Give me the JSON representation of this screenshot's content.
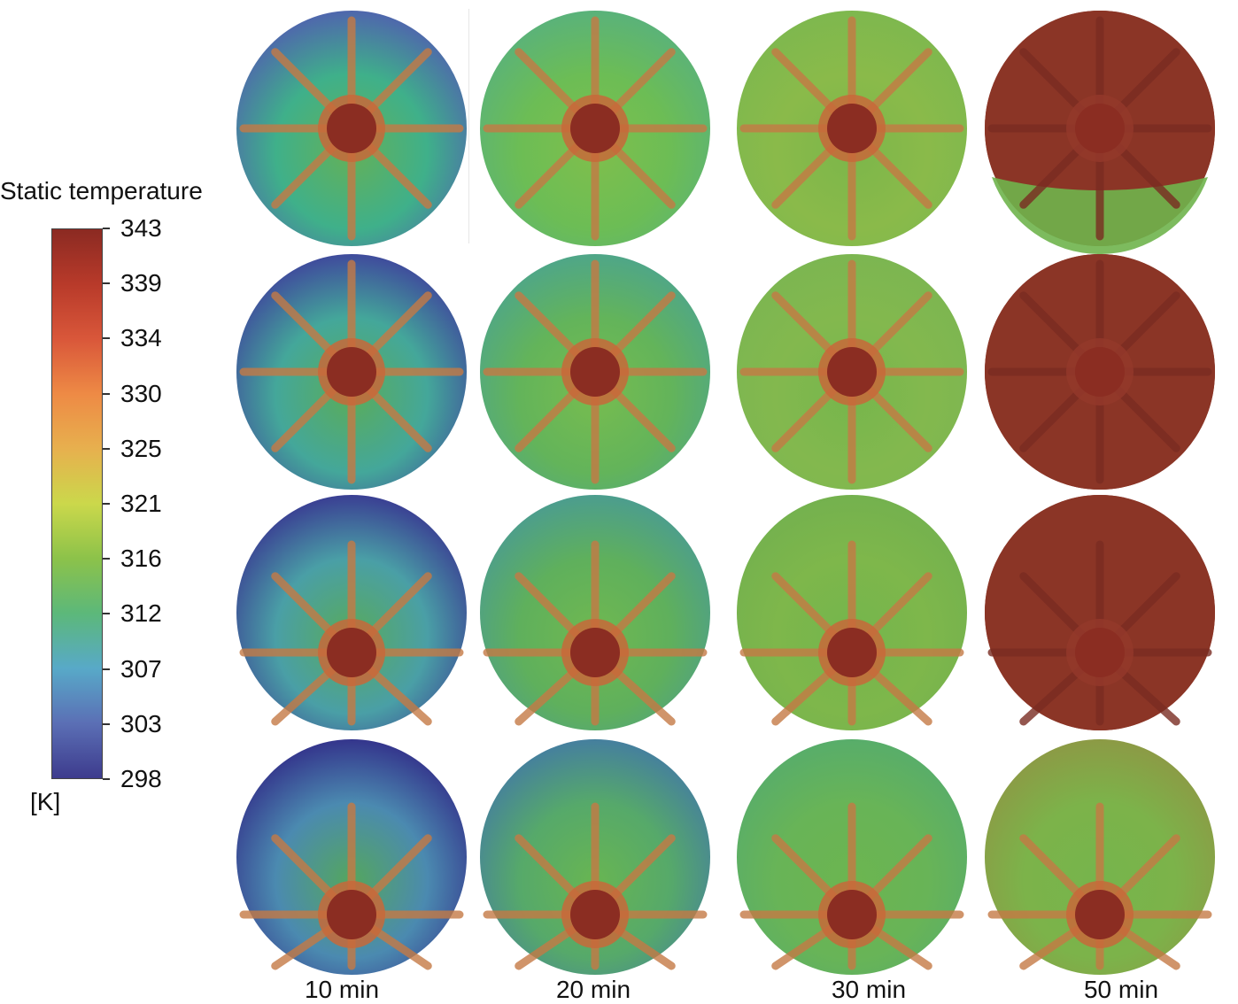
{
  "legend": {
    "title": "Static temperature",
    "unit": "[K]",
    "ticks": [
      "343",
      "339",
      "334",
      "330",
      "325",
      "321",
      "316",
      "312",
      "307",
      "303",
      "298"
    ],
    "gradient_colors": [
      "#8b2a22",
      "#b83a2a",
      "#d9573a",
      "#ee8a45",
      "#e7b04e",
      "#cbd84b",
      "#8cc24a",
      "#5cb87a",
      "#58a9c8",
      "#5b6fb5",
      "#3d3b8d"
    ]
  },
  "columns": [
    "10 min",
    "20 min",
    "30 min",
    "50 min"
  ],
  "fields": {
    "rows": [
      [
        {
          "edge": "#4f66ad",
          "mid": "#3fb08a",
          "g": "#64b058"
        },
        {
          "edge": "#5ab27a",
          "mid": "#6cbd55",
          "g": "#7fbf4c"
        },
        {
          "edge": "#7eb84e",
          "mid": "#8aba4a",
          "g": "#7cb64a"
        },
        {
          "edge": "#8a3426",
          "mid": "#8a3426",
          "g": "#6fb44c",
          "hot": true
        }
      ],
      [
        {
          "edge": "#3f4b9c",
          "mid": "#44a79a",
          "g": "#5aac5a"
        },
        {
          "edge": "#4fa688",
          "mid": "#63b45a",
          "g": "#77bc4f"
        },
        {
          "edge": "#7cb651",
          "mid": "#83b84e",
          "g": "#76b64c"
        },
        {
          "edge": "#8a3426",
          "mid": "#8a3426",
          "g": "#8a3426",
          "hot": true
        }
      ],
      [
        {
          "edge": "#3a3f93",
          "mid": "#4a9fa6",
          "g": "#58aa5c"
        },
        {
          "edge": "#4c9d8e",
          "mid": "#5fb05c",
          "g": "#70b850"
        },
        {
          "edge": "#74b14e",
          "mid": "#7eb74b",
          "g": "#74b54c"
        },
        {
          "edge": "#8a3426",
          "mid": "#8a3426",
          "g": "#8a3426",
          "hot": true
        }
      ],
      [
        {
          "edge": "#34358c",
          "mid": "#4b8ab0",
          "g": "#54a65e"
        },
        {
          "edge": "#457f9e",
          "mid": "#56a96a",
          "g": "#68b552"
        },
        {
          "edge": "#58ad6a",
          "mid": "#68b457",
          "g": "#6cb550"
        },
        {
          "edge": "#8c9a45",
          "mid": "#7cb34a",
          "g": "#76b44c"
        }
      ]
    ]
  }
}
